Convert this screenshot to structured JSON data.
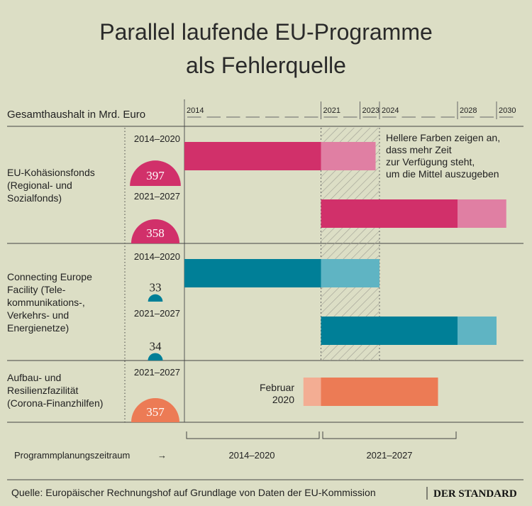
{
  "title_line1": "Parallel laufende EU-Programme",
  "title_line2": "als Fehlerquelle",
  "header_label": "Gesamthaushalt in Mrd. Euro",
  "note_lines": [
    "Hellere Farben zeigen an,",
    "dass mehr Zeit",
    "zur Verfügung steht,",
    "um die Mittel auszugeben"
  ],
  "feb_label": [
    "Februar",
    "2020"
  ],
  "footer": {
    "label": "Programmplanungszeitraum",
    "arrow": "→",
    "period1": "2014–2020",
    "period2": "2021–2027"
  },
  "source": "Quelle: Europäischer Rechnungshof auf Grundlage von Daten der EU-Kommission",
  "brand": "DER STANDARD",
  "colors": {
    "background": "#dcdec5",
    "magenta": "#d1306a",
    "magenta_light": "#e07fa3",
    "teal": "#007f97",
    "teal_light": "#5fb4c3",
    "orange": "#ec7b55",
    "orange_light": "#f3ad93"
  },
  "chart_data": {
    "type": "gantt",
    "title": "Parallel laufende EU-Programme als Fehlerquelle",
    "unit": "Mrd. Euro",
    "xlim": [
      2014,
      2031
    ],
    "tick_labels": [
      "2014",
      "2021",
      "2023",
      "2024",
      "2028",
      "2030"
    ],
    "hatched_range": [
      2021,
      2024
    ],
    "groups": [
      {
        "name": "EU-Kohäsionsfonds (Regional- und Sozialfonds)",
        "name_lines": [
          "EU-Kohäsionsfonds",
          "(Regional- und",
          "Sozialfonds)"
        ],
        "color": "magenta",
        "programs": [
          {
            "period": "2014–2020",
            "budget": 397,
            "main": [
              2014,
              2021
            ],
            "extended": [
              2021,
              2023.8
            ]
          },
          {
            "period": "2021–2027",
            "budget": 358,
            "main": [
              2021,
              2028
            ],
            "extended": [
              2028,
              2030.5
            ]
          }
        ]
      },
      {
        "name": "Connecting Europe Facility (Telekommunikations-, Verkehrs- und Energienetze)",
        "name_lines": [
          "Connecting Europe",
          "Facility (Tele-",
          "kommunikations-,",
          "Verkehrs- und",
          "Energienetze)"
        ],
        "color": "teal",
        "programs": [
          {
            "period": "2014–2020",
            "budget": 33,
            "main": [
              2014,
              2021
            ],
            "extended": [
              2021,
              2024
            ]
          },
          {
            "period": "2021–2027",
            "budget": 34,
            "main": [
              2021,
              2028
            ],
            "extended": [
              2028,
              2030
            ]
          }
        ]
      },
      {
        "name": "Aufbau- und Resilienzfazilität (Corona-Finanzhilfen)",
        "name_lines": [
          "Aufbau- und",
          "Resilienzfazilität",
          "(Corona-Finanzhilfen)"
        ],
        "color": "orange",
        "programs": [
          {
            "period": "2021–2027",
            "budget": 357,
            "main": [
              2021,
              2027
            ],
            "pre": [
              2020.1,
              2021
            ]
          }
        ]
      }
    ]
  }
}
